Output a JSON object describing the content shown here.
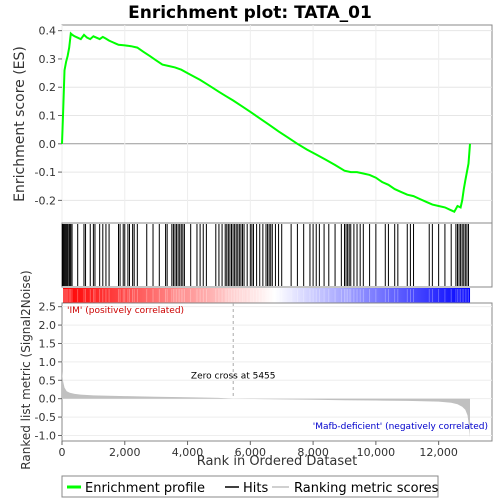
{
  "chart_data": {
    "type": "line",
    "title": "Enrichment plot: TATA_01",
    "xlabel": "Rank in Ordered Dataset",
    "es_panel": {
      "ylabel": "Enrichment score (ES)",
      "ylim": [
        -0.28,
        0.42
      ],
      "yticks": [
        -0.2,
        -0.1,
        0.0,
        0.1,
        0.2,
        0.3,
        0.4
      ],
      "ytick_labels": [
        "-0.2",
        "-0.1",
        "0.0",
        "0.1",
        "0.2",
        "0.3",
        "0.4"
      ],
      "series": [
        {
          "name": "Enrichment profile",
          "color": "#00ff00",
          "x": [
            0,
            40,
            80,
            130,
            180,
            230,
            280,
            330,
            400,
            500,
            600,
            700,
            800,
            900,
            1000,
            1100,
            1200,
            1300,
            1400,
            1500,
            1600,
            1700,
            1800,
            2000,
            2200,
            2400,
            2600,
            2800,
            3000,
            3200,
            3400,
            3600,
            3800,
            4000,
            4200,
            4400,
            4600,
            4800,
            5000,
            5200,
            5455,
            5700,
            6000,
            6300,
            6600,
            6900,
            7200,
            7500,
            7800,
            8100,
            8400,
            8700,
            9000,
            9200,
            9400,
            9600,
            9800,
            10000,
            10200,
            10400,
            10600,
            10800,
            11000,
            11200,
            11400,
            11600,
            11800,
            12000,
            12200,
            12400,
            12500,
            12600,
            12700,
            12750,
            12800,
            12850,
            12900,
            12950,
            13000
          ],
          "values": [
            0.0,
            0.13,
            0.26,
            0.29,
            0.31,
            0.34,
            0.39,
            0.385,
            0.38,
            0.375,
            0.37,
            0.385,
            0.375,
            0.37,
            0.38,
            0.375,
            0.37,
            0.378,
            0.372,
            0.365,
            0.36,
            0.355,
            0.35,
            0.348,
            0.345,
            0.34,
            0.325,
            0.31,
            0.295,
            0.28,
            0.275,
            0.27,
            0.262,
            0.25,
            0.238,
            0.226,
            0.212,
            0.198,
            0.184,
            0.17,
            0.153,
            0.135,
            0.113,
            0.09,
            0.067,
            0.044,
            0.022,
            0.0,
            -0.02,
            -0.038,
            -0.056,
            -0.075,
            -0.095,
            -0.1,
            -0.1,
            -0.105,
            -0.11,
            -0.12,
            -0.135,
            -0.145,
            -0.16,
            -0.17,
            -0.18,
            -0.185,
            -0.195,
            -0.205,
            -0.215,
            -0.22,
            -0.225,
            -0.235,
            -0.24,
            -0.22,
            -0.225,
            -0.2,
            -0.16,
            -0.13,
            -0.1,
            -0.07,
            0.0
          ]
        }
      ]
    },
    "hits_panel": {
      "x": [
        10,
        30,
        60,
        90,
        120,
        150,
        180,
        220,
        250,
        280,
        320,
        500,
        700,
        750,
        900,
        1000,
        1050,
        1200,
        1300,
        1400,
        1500,
        1800,
        1850,
        1950,
        2000,
        2100,
        2150,
        2250,
        2300,
        2400,
        2700,
        2900,
        3100,
        3300,
        3350,
        3500,
        3550,
        3600,
        3650,
        3700,
        3750,
        3800,
        3850,
        3900,
        4100,
        4300,
        4400,
        4500,
        4600,
        4900,
        5000,
        5100,
        5200,
        5250,
        5300,
        5350,
        5400,
        5450,
        5500,
        5550,
        5600,
        5650,
        5700,
        5750,
        5800,
        5900,
        6000,
        6050,
        6100,
        6200,
        6300,
        6400,
        6500,
        6550,
        6600,
        6650,
        6700,
        6800,
        6900,
        7000,
        7300,
        7500,
        7700,
        7900,
        8000,
        8100,
        8200,
        8350,
        8500,
        8700,
        8900,
        9000,
        9050,
        9100,
        9150,
        9200,
        9300,
        9400,
        9500,
        9600,
        9800,
        10000,
        10300,
        10400,
        10600,
        10700,
        11000,
        11100,
        11200,
        11700,
        11800,
        12000,
        12200,
        12400,
        12550,
        12600,
        12650,
        12700,
        12750,
        12800,
        12850,
        12900,
        12950
      ],
      "bar_colormap": [
        "#ff0000",
        "#ffffff",
        "#0000ff"
      ]
    },
    "metric_panel": {
      "ylabel": "Ranked list metric (Signal2Noise)",
      "ylim": [
        -1.15,
        2.6
      ],
      "yticks": [
        -1.0,
        -0.5,
        0.0,
        0.5,
        1.0,
        1.5,
        2.0,
        2.5
      ],
      "ytick_labels": [
        "-1.0",
        "-0.5",
        "0.0",
        "0.5",
        "1.0",
        "1.5",
        "2.0",
        "2.5"
      ],
      "fill_color": "#c0c0c0",
      "x": [
        0,
        30,
        80,
        150,
        250,
        400,
        600,
        1000,
        2000,
        3000,
        4000,
        5000,
        5455,
        6000,
        7000,
        8000,
        9000,
        10000,
        11000,
        12000,
        12400,
        12600,
        12750,
        12850,
        12920,
        12960,
        13000
      ],
      "values": [
        0.75,
        0.5,
        0.3,
        0.2,
        0.16,
        0.13,
        0.11,
        0.09,
        0.07,
        0.05,
        0.04,
        0.02,
        0.0,
        -0.01,
        -0.02,
        -0.03,
        -0.04,
        -0.05,
        -0.06,
        -0.08,
        -0.11,
        -0.15,
        -0.22,
        -0.3,
        -0.45,
        -0.7,
        -1.05
      ],
      "zero_cross_label": "Zero cross at 5455",
      "zero_cross_x": 5455,
      "pos_label": "'IM' (positively correlated)",
      "neg_label": "'Mafb-deficient' (negatively correlated)"
    },
    "xlim": [
      0,
      13700
    ],
    "xticks": [
      0,
      2000,
      4000,
      6000,
      8000,
      10000,
      12000
    ],
    "xtick_labels": [
      "0",
      "2,000",
      "4,000",
      "6,000",
      "8,000",
      "10,000",
      "12,000"
    ],
    "legend": {
      "placement": "bottom",
      "entries": [
        {
          "label": "Enrichment profile",
          "color": "#00ff00"
        },
        {
          "label": "Hits",
          "color": "#000000"
        },
        {
          "label": "Ranking metric scores",
          "color": "#c0c0c0"
        }
      ]
    }
  }
}
